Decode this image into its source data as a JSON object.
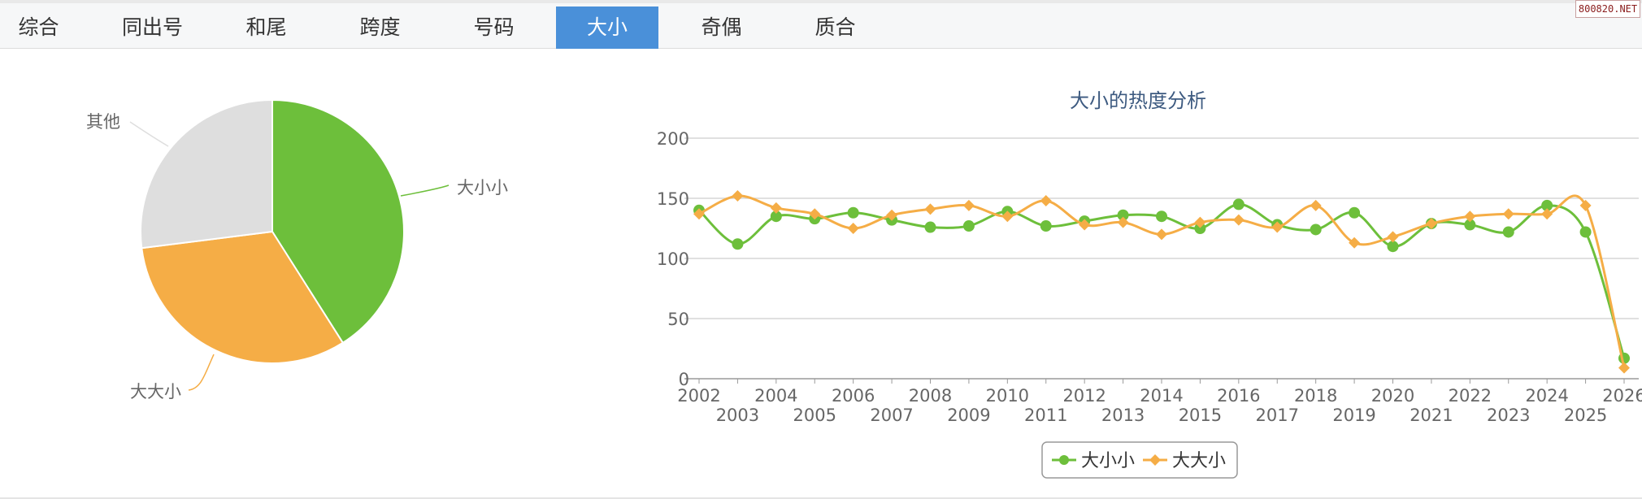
{
  "tabs": [
    {
      "label": "综合",
      "active": false
    },
    {
      "label": "同出号",
      "active": false
    },
    {
      "label": "和尾",
      "active": false
    },
    {
      "label": "跨度",
      "active": false
    },
    {
      "label": "号码",
      "active": false
    },
    {
      "label": "大小",
      "active": true
    },
    {
      "label": "奇偶",
      "active": false
    },
    {
      "label": "质合",
      "active": false
    }
  ],
  "watermark": "800820.NET",
  "colors": {
    "green": "#6dbf3b",
    "orange": "#f5ad46",
    "gray": "#dedede",
    "active_tab": "#4a90d9"
  },
  "chart_data": [
    {
      "type": "pie",
      "slices": [
        {
          "label": "大小小",
          "value": 41,
          "color": "#6dbf3b"
        },
        {
          "label": "大大小",
          "value": 32,
          "color": "#f5ad46"
        },
        {
          "label": "其他",
          "value": 27,
          "color": "#dedede"
        }
      ]
    },
    {
      "type": "line",
      "title": "大小的热度分析",
      "x": [
        "2002",
        "2003",
        "2004",
        "2005",
        "2006",
        "2007",
        "2008",
        "2009",
        "2010",
        "2011",
        "2012",
        "2013",
        "2014",
        "2015",
        "2016",
        "2017",
        "2018",
        "2019",
        "2020",
        "2021",
        "2022",
        "2023",
        "2024",
        "2025",
        "2026"
      ],
      "series": [
        {
          "name": "大小小",
          "color": "#6dbf3b",
          "marker": "circle",
          "values": [
            140,
            112,
            135,
            133,
            138,
            132,
            126,
            127,
            139,
            127,
            131,
            136,
            135,
            125,
            145,
            128,
            124,
            138,
            110,
            129,
            128,
            122,
            144,
            122,
            17
          ]
        },
        {
          "name": "大大小",
          "color": "#f5ad46",
          "marker": "diamond",
          "values": [
            137,
            152,
            142,
            137,
            125,
            136,
            141,
            144,
            135,
            148,
            128,
            130,
            120,
            130,
            132,
            126,
            144,
            113,
            118,
            129,
            135,
            137,
            137,
            144,
            9
          ]
        }
      ],
      "ylim": [
        0,
        200
      ],
      "yticks": [
        0,
        50,
        100,
        150,
        200
      ],
      "grid": true,
      "legend": "bottom"
    }
  ]
}
